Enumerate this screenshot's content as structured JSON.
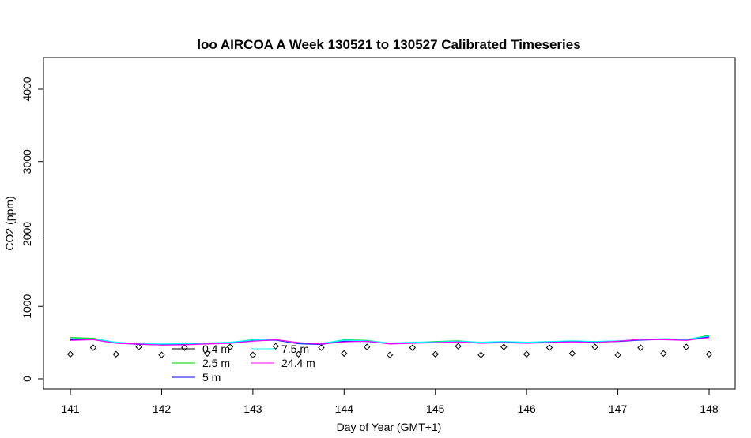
{
  "chart_data": {
    "type": "line",
    "title": "loo AIRCOA A  Week 130521 to 130527  Calibrated Timeseries",
    "x_label": "Day of Year (GMT+1)",
    "y_label": "CO2 (ppm)",
    "x": [
      141,
      141.25,
      141.5,
      141.75,
      142,
      142.25,
      142.5,
      142.75,
      143,
      143.25,
      143.5,
      143.75,
      144,
      144.25,
      144.5,
      144.75,
      145,
      145.25,
      145.5,
      145.75,
      146,
      146.25,
      146.5,
      146.75,
      147,
      147.25,
      147.5,
      147.75,
      148
    ],
    "series": [
      {
        "name": "0.4 m",
        "color": "#000000",
        "mode": "points",
        "values": [
          340,
          430,
          340,
          440,
          330,
          430,
          350,
          440,
          330,
          450,
          340,
          430,
          350,
          440,
          330,
          430,
          340,
          450,
          330,
          440,
          340,
          430,
          350,
          440,
          330,
          430,
          350,
          440,
          340
        ]
      },
      {
        "name": "2.5 m",
        "color": "#00cd00",
        "mode": "line",
        "values": [
          570,
          560,
          500,
          480,
          475,
          480,
          490,
          500,
          540,
          545,
          490,
          480,
          540,
          530,
          490,
          500,
          515,
          525,
          500,
          510,
          500,
          510,
          520,
          510,
          520,
          545,
          550,
          540,
          600
        ]
      },
      {
        "name": "5 m",
        "color": "#0000ff",
        "mode": "line",
        "values": [
          540,
          545,
          495,
          475,
          470,
          475,
          485,
          495,
          525,
          535,
          485,
          475,
          520,
          515,
          485,
          495,
          505,
          515,
          495,
          505,
          495,
          505,
          515,
          505,
          515,
          535,
          545,
          535,
          580
        ]
      },
      {
        "name": "7.5 m",
        "color": "#00ffff",
        "mode": "line",
        "values": [
          555,
          550,
          505,
          485,
          480,
          485,
          495,
          505,
          535,
          540,
          495,
          490,
          535,
          525,
          495,
          505,
          510,
          520,
          505,
          515,
          505,
          515,
          525,
          515,
          525,
          540,
          555,
          545,
          590
        ]
      },
      {
        "name": "24.4 m",
        "color": "#ff00ff",
        "mode": "line",
        "values": [
          530,
          540,
          490,
          480,
          465,
          470,
          480,
          490,
          520,
          540,
          500,
          480,
          510,
          520,
          480,
          490,
          500,
          510,
          490,
          500,
          490,
          500,
          510,
          500,
          520,
          545,
          540,
          530,
          570
        ]
      }
    ],
    "xlim": [
      140.705,
      148.286
    ],
    "ylim": [
      -142,
      4436
    ],
    "xticks": [
      141,
      142,
      143,
      144,
      145,
      146,
      147,
      148
    ],
    "yticks": [
      0,
      1000,
      2000,
      3000,
      4000
    ]
  }
}
